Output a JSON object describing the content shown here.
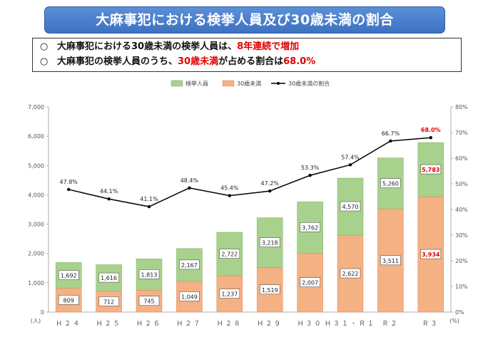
{
  "header": {
    "title": "大麻事犯における検挙人員及び30歳未満の割合"
  },
  "bullets": [
    {
      "marker": "○",
      "text_a": "大麻事犯における30歳未満の検挙人員は、",
      "text_b": "8年連続で増加",
      "text_c": ""
    },
    {
      "marker": "○",
      "text_a": "大麻事犯の検挙人員のうち、",
      "text_b": "30歳未満",
      "text_c": "が占める割合は",
      "text_d": "68.0%"
    }
  ],
  "chart_data": {
    "type": "bar",
    "categories": [
      "H24",
      "H25",
      "H26",
      "H27",
      "H28",
      "H29",
      "H30",
      "H31・R1",
      "R2",
      "R3"
    ],
    "category_labels": [
      "Ｈ２４",
      "Ｈ２５",
      "Ｈ２６",
      "Ｈ２７",
      "Ｈ２８",
      "Ｈ２９",
      "Ｈ３０",
      "Ｈ３１・Ｒ１",
      "Ｒ２",
      "Ｒ３"
    ],
    "series": [
      {
        "name": "検挙人員",
        "kind": "stacked-total",
        "color": "#a9d18e",
        "values": [
          1692,
          1616,
          1813,
          2167,
          2722,
          3218,
          3762,
          4570,
          5260,
          5783
        ]
      },
      {
        "name": "30歳未満",
        "kind": "stacked-bottom",
        "color": "#f4b183",
        "values": [
          809,
          712,
          745,
          1049,
          1237,
          1519,
          2007,
          2622,
          3511,
          3934
        ]
      },
      {
        "name": "30歳未満の割合",
        "kind": "line",
        "color": "#000000",
        "values": [
          47.8,
          44.1,
          41.1,
          48.4,
          45.4,
          47.2,
          53.3,
          57.4,
          66.7,
          68.0
        ]
      }
    ],
    "data_labels": {
      "totals": [
        "1,692",
        "1,616",
        "1,813",
        "2,167",
        "2,722",
        "3,218",
        "3,762",
        "4,570",
        "5,260",
        "5,783"
      ],
      "under30": [
        "809",
        "712",
        "745",
        "1,049",
        "1,237",
        "1,519",
        "2,007",
        "2,622",
        "3,511",
        "3,934"
      ],
      "ratios": [
        "47.8%",
        "44.1%",
        "41.1%",
        "48.4%",
        "45.4%",
        "47.2%",
        "53.3%",
        "57.4%",
        "66.7%",
        "68.0%"
      ],
      "highlight_last": true
    },
    "y_left": {
      "min": 0,
      "max": 7000,
      "step": 1000,
      "ticks": [
        "0",
        "1,000",
        "2,000",
        "3,000",
        "4,000",
        "5,000",
        "6,000",
        "7,000"
      ],
      "unit": "(人)"
    },
    "y_right": {
      "min": 0,
      "max": 80,
      "step": 10,
      "ticks": [
        "0%",
        "10%",
        "20%",
        "30%",
        "40%",
        "50%",
        "60%",
        "70%",
        "80%"
      ],
      "unit": "(%)"
    },
    "legend_position": "top-center",
    "grid": false
  }
}
